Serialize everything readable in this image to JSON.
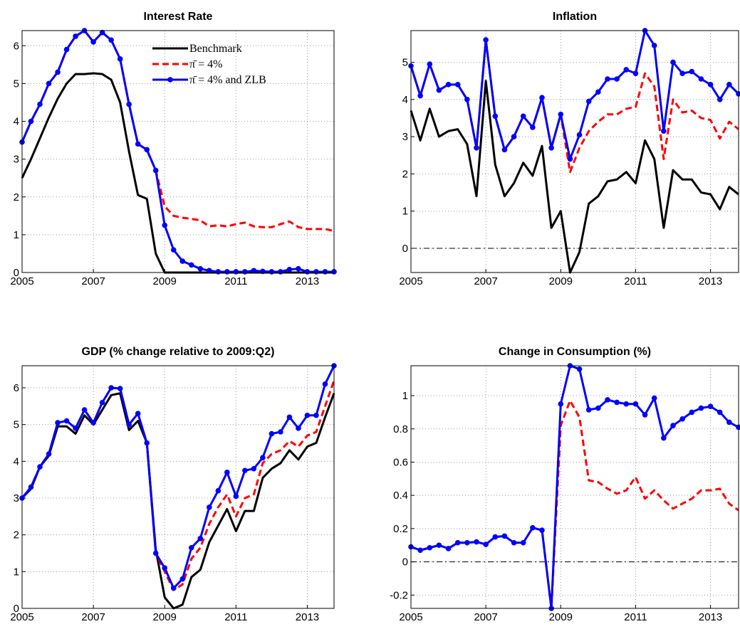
{
  "chart_data": [
    {
      "type": "line",
      "title": "Interest Rate",
      "x": [
        2005,
        2005.25,
        2005.5,
        2005.75,
        2006,
        2006.25,
        2006.5,
        2006.75,
        2007,
        2007.25,
        2007.5,
        2007.75,
        2008,
        2008.25,
        2008.5,
        2008.75,
        2009,
        2009.25,
        2009.5,
        2009.75,
        2010,
        2010.25,
        2010.5,
        2010.75,
        2011,
        2011.25,
        2011.5,
        2011.75,
        2012,
        2012.25,
        2012.5,
        2012.75,
        2013,
        2013.25,
        2013.5,
        2013.75
      ],
      "xlim": [
        2005,
        2013.75
      ],
      "xticks": [
        2005,
        2007,
        2009,
        2011,
        2013
      ],
      "ylim": [
        0,
        6.4
      ],
      "yticks": [
        0,
        1,
        2,
        3,
        4,
        5,
        6
      ],
      "grid": true,
      "legend": "upper right",
      "series": [
        {
          "name": "Benchmark",
          "color": "#000000",
          "values": [
            2.5,
            3.0,
            3.55,
            4.1,
            4.6,
            5.0,
            5.25,
            5.25,
            5.27,
            5.25,
            5.1,
            4.5,
            3.2,
            2.05,
            1.95,
            0.5,
            0,
            0,
            0,
            0,
            0,
            0,
            0,
            0,
            0,
            0,
            0,
            0,
            0,
            0,
            0,
            0,
            0,
            0,
            0,
            0
          ]
        },
        {
          "name": "π̄ = 4%",
          "color": "#ff0000",
          "dashed": true,
          "values": [
            3.45,
            4.0,
            4.45,
            5.0,
            5.3,
            5.9,
            6.25,
            6.4,
            6.1,
            6.35,
            6.15,
            5.65,
            4.45,
            3.4,
            3.25,
            2.7,
            1.75,
            1.5,
            1.45,
            1.42,
            1.38,
            1.22,
            1.25,
            1.22,
            1.28,
            1.32,
            1.22,
            1.2,
            1.2,
            1.28,
            1.35,
            1.2,
            1.15,
            1.15,
            1.15,
            1.1
          ]
        },
        {
          "name": "π̄ = 4% and ZLB",
          "color": "#0000ff",
          "marker": true,
          "values": [
            3.45,
            4.0,
            4.45,
            5.0,
            5.3,
            5.9,
            6.25,
            6.4,
            6.1,
            6.35,
            6.15,
            5.65,
            4.45,
            3.4,
            3.25,
            2.7,
            1.25,
            0.6,
            0.3,
            0.2,
            0.1,
            0.05,
            0.02,
            0.02,
            0.02,
            0.02,
            0.05,
            0.03,
            0.02,
            0.02,
            0.08,
            0.1,
            0.02,
            0.02,
            0.02,
            0.02
          ]
        }
      ]
    },
    {
      "type": "line",
      "title": "Inflation",
      "x": [
        2005,
        2005.25,
        2005.5,
        2005.75,
        2006,
        2006.25,
        2006.5,
        2006.75,
        2007,
        2007.25,
        2007.5,
        2007.75,
        2008,
        2008.25,
        2008.5,
        2008.75,
        2009,
        2009.25,
        2009.5,
        2009.75,
        2010,
        2010.25,
        2010.5,
        2010.75,
        2011,
        2011.25,
        2011.5,
        2011.75,
        2012,
        2012.25,
        2012.5,
        2012.75,
        2013,
        2013.25,
        2013.5,
        2013.75
      ],
      "xlim": [
        2005,
        2013.75
      ],
      "xticks": [
        2005,
        2007,
        2009,
        2011,
        2013
      ],
      "ylim": [
        -0.65,
        5.85
      ],
      "yticks": [
        0,
        1,
        2,
        3,
        4,
        5
      ],
      "grid": true,
      "zero_line": true,
      "series": [
        {
          "color": "#000000",
          "values": [
            3.7,
            2.9,
            3.75,
            3.0,
            3.15,
            3.2,
            2.8,
            1.4,
            4.5,
            2.25,
            1.4,
            1.75,
            2.3,
            1.95,
            2.75,
            0.55,
            1.0,
            -0.65,
            -0.1,
            1.2,
            1.4,
            1.8,
            1.85,
            2.05,
            1.75,
            2.9,
            2.4,
            0.55,
            2.1,
            1.85,
            1.85,
            1.5,
            1.45,
            1.05,
            1.65,
            1.45
          ]
        },
        {
          "color": "#ff0000",
          "dashed": true,
          "values": [
            4.9,
            4.1,
            4.95,
            4.25,
            4.4,
            4.4,
            4.0,
            2.7,
            5.6,
            3.55,
            2.65,
            3.0,
            3.55,
            3.25,
            4.05,
            2.7,
            3.6,
            2.05,
            2.7,
            3.15,
            3.4,
            3.6,
            3.6,
            3.75,
            3.8,
            4.7,
            4.35,
            2.4,
            4.0,
            3.65,
            3.7,
            3.5,
            3.45,
            2.95,
            3.4,
            3.2
          ]
        },
        {
          "color": "#0000ff",
          "marker": true,
          "values": [
            4.9,
            4.1,
            4.95,
            4.25,
            4.4,
            4.4,
            4.0,
            2.7,
            5.6,
            3.55,
            2.65,
            3.0,
            3.55,
            3.25,
            4.05,
            2.7,
            3.6,
            2.4,
            3.05,
            3.95,
            4.2,
            4.55,
            4.55,
            4.8,
            4.7,
            5.85,
            5.45,
            3.15,
            5.0,
            4.7,
            4.75,
            4.55,
            4.4,
            4.0,
            4.4,
            4.15
          ]
        }
      ]
    },
    {
      "type": "line",
      "title": "GDP (% change relative to 2009:Q2)",
      "x": [
        2005,
        2005.25,
        2005.5,
        2005.75,
        2006,
        2006.25,
        2006.5,
        2006.75,
        2007,
        2007.25,
        2007.5,
        2007.75,
        2008,
        2008.25,
        2008.5,
        2008.75,
        2009,
        2009.25,
        2009.5,
        2009.75,
        2010,
        2010.25,
        2010.5,
        2010.75,
        2011,
        2011.25,
        2011.5,
        2011.75,
        2012,
        2012.25,
        2012.5,
        2012.75,
        2013,
        2013.25,
        2013.5,
        2013.75
      ],
      "xlim": [
        2005,
        2013.75
      ],
      "xticks": [
        2005,
        2007,
        2009,
        2011,
        2013
      ],
      "ylim": [
        0,
        6.6
      ],
      "yticks": [
        0,
        1,
        2,
        3,
        4,
        5,
        6
      ],
      "grid": true,
      "series": [
        {
          "color": "#000000",
          "values": [
            3.0,
            3.25,
            3.85,
            4.15,
            4.95,
            4.95,
            4.75,
            5.25,
            5.0,
            5.4,
            5.8,
            5.85,
            4.85,
            5.1,
            4.5,
            1.6,
            0.3,
            0.0,
            0.1,
            0.85,
            1.05,
            1.8,
            2.25,
            2.7,
            2.1,
            2.65,
            2.65,
            3.55,
            3.8,
            3.95,
            4.3,
            4.05,
            4.4,
            4.5,
            5.2,
            5.85
          ]
        },
        {
          "color": "#ff0000",
          "dashed": true,
          "values": [
            3.0,
            3.3,
            3.85,
            4.2,
            5.05,
            5.1,
            4.9,
            5.4,
            5.05,
            5.6,
            6.0,
            5.98,
            5.0,
            5.3,
            4.5,
            1.5,
            1.0,
            0.5,
            0.65,
            1.35,
            1.65,
            2.3,
            2.75,
            3.1,
            2.5,
            3.0,
            3.1,
            3.95,
            4.2,
            4.3,
            4.55,
            4.4,
            4.7,
            4.8,
            5.5,
            6.2
          ]
        },
        {
          "color": "#0000ff",
          "marker": true,
          "values": [
            3.0,
            3.3,
            3.85,
            4.2,
            5.05,
            5.1,
            4.9,
            5.4,
            5.05,
            5.6,
            6.0,
            5.98,
            5.0,
            5.3,
            4.5,
            1.5,
            1.1,
            0.55,
            0.8,
            1.65,
            1.9,
            2.75,
            3.2,
            3.7,
            3.05,
            3.75,
            3.8,
            4.1,
            4.75,
            4.8,
            5.2,
            4.9,
            5.25,
            5.25,
            6.1,
            6.6
          ]
        }
      ]
    },
    {
      "type": "line",
      "title": "Change in Consumption (%)",
      "x": [
        2005,
        2005.25,
        2005.5,
        2005.75,
        2006,
        2006.25,
        2006.5,
        2006.75,
        2007,
        2007.25,
        2007.5,
        2007.75,
        2008,
        2008.25,
        2008.5,
        2008.75,
        2009,
        2009.25,
        2009.5,
        2009.75,
        2010,
        2010.25,
        2010.5,
        2010.75,
        2011,
        2011.25,
        2011.5,
        2011.75,
        2012,
        2012.25,
        2012.5,
        2012.75,
        2013,
        2013.25,
        2013.5,
        2013.75
      ],
      "xlim": [
        2005,
        2013.75
      ],
      "xticks": [
        2005,
        2007,
        2009,
        2011,
        2013
      ],
      "ylim": [
        -0.28,
        1.18
      ],
      "yticks": [
        -0.2,
        0,
        0.2,
        0.4,
        0.6,
        0.8,
        1
      ],
      "grid": true,
      "zero_line": true,
      "series": [
        {
          "color": "#ff0000",
          "dashed": true,
          "values": [
            0.09,
            0.07,
            0.085,
            0.1,
            0.08,
            0.115,
            0.115,
            0.12,
            0.105,
            0.15,
            0.155,
            0.115,
            0.115,
            0.205,
            0.19,
            -0.28,
            0.82,
            0.97,
            0.87,
            0.49,
            0.48,
            0.44,
            0.41,
            0.43,
            0.51,
            0.38,
            0.43,
            0.37,
            0.32,
            0.35,
            0.38,
            0.43,
            0.43,
            0.44,
            0.35,
            0.31
          ]
        },
        {
          "color": "#0000ff",
          "marker": true,
          "values": [
            0.09,
            0.07,
            0.085,
            0.1,
            0.08,
            0.115,
            0.115,
            0.12,
            0.105,
            0.15,
            0.155,
            0.115,
            0.115,
            0.205,
            0.19,
            -0.28,
            0.95,
            1.18,
            1.16,
            0.915,
            0.925,
            0.975,
            0.96,
            0.95,
            0.95,
            0.885,
            0.985,
            0.745,
            0.82,
            0.86,
            0.9,
            0.925,
            0.935,
            0.9,
            0.84,
            0.81
          ]
        }
      ]
    }
  ]
}
